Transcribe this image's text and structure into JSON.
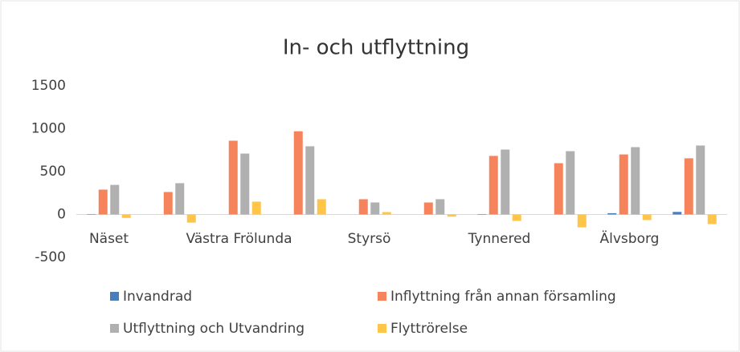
{
  "chart_data": {
    "type": "bar",
    "title": "In- och utflyttning",
    "categories": [
      "Näset",
      null,
      "Västra Frölunda",
      null,
      "Styrsö",
      null,
      "Tynnered",
      null,
      "Älvsborg",
      null
    ],
    "series": [
      {
        "name": "Invandrad",
        "color": "#4a7ebb",
        "values": [
          5,
          0,
          0,
          0,
          0,
          0,
          5,
          0,
          15,
          30
        ]
      },
      {
        "name": "Inflyttning från annan församling",
        "color": "#f5845c",
        "values": [
          290,
          262,
          860,
          970,
          178,
          140,
          683,
          598,
          700,
          655
        ]
      },
      {
        "name": "Utflyttning och Utvandring",
        "color": "#b0b0b0",
        "values": [
          345,
          365,
          710,
          795,
          140,
          178,
          757,
          738,
          785,
          804
        ]
      },
      {
        "name": "Flyttrörelse",
        "color": "#ffc54a",
        "values": [
          -40,
          -95,
          150,
          178,
          28,
          -25,
          -75,
          -150,
          -65,
          -112
        ]
      }
    ],
    "ylim": [
      -500,
      1500
    ],
    "yticks": [
      -500,
      0,
      500,
      1000,
      1500
    ],
    "grid": false,
    "legend": "bottom"
  }
}
